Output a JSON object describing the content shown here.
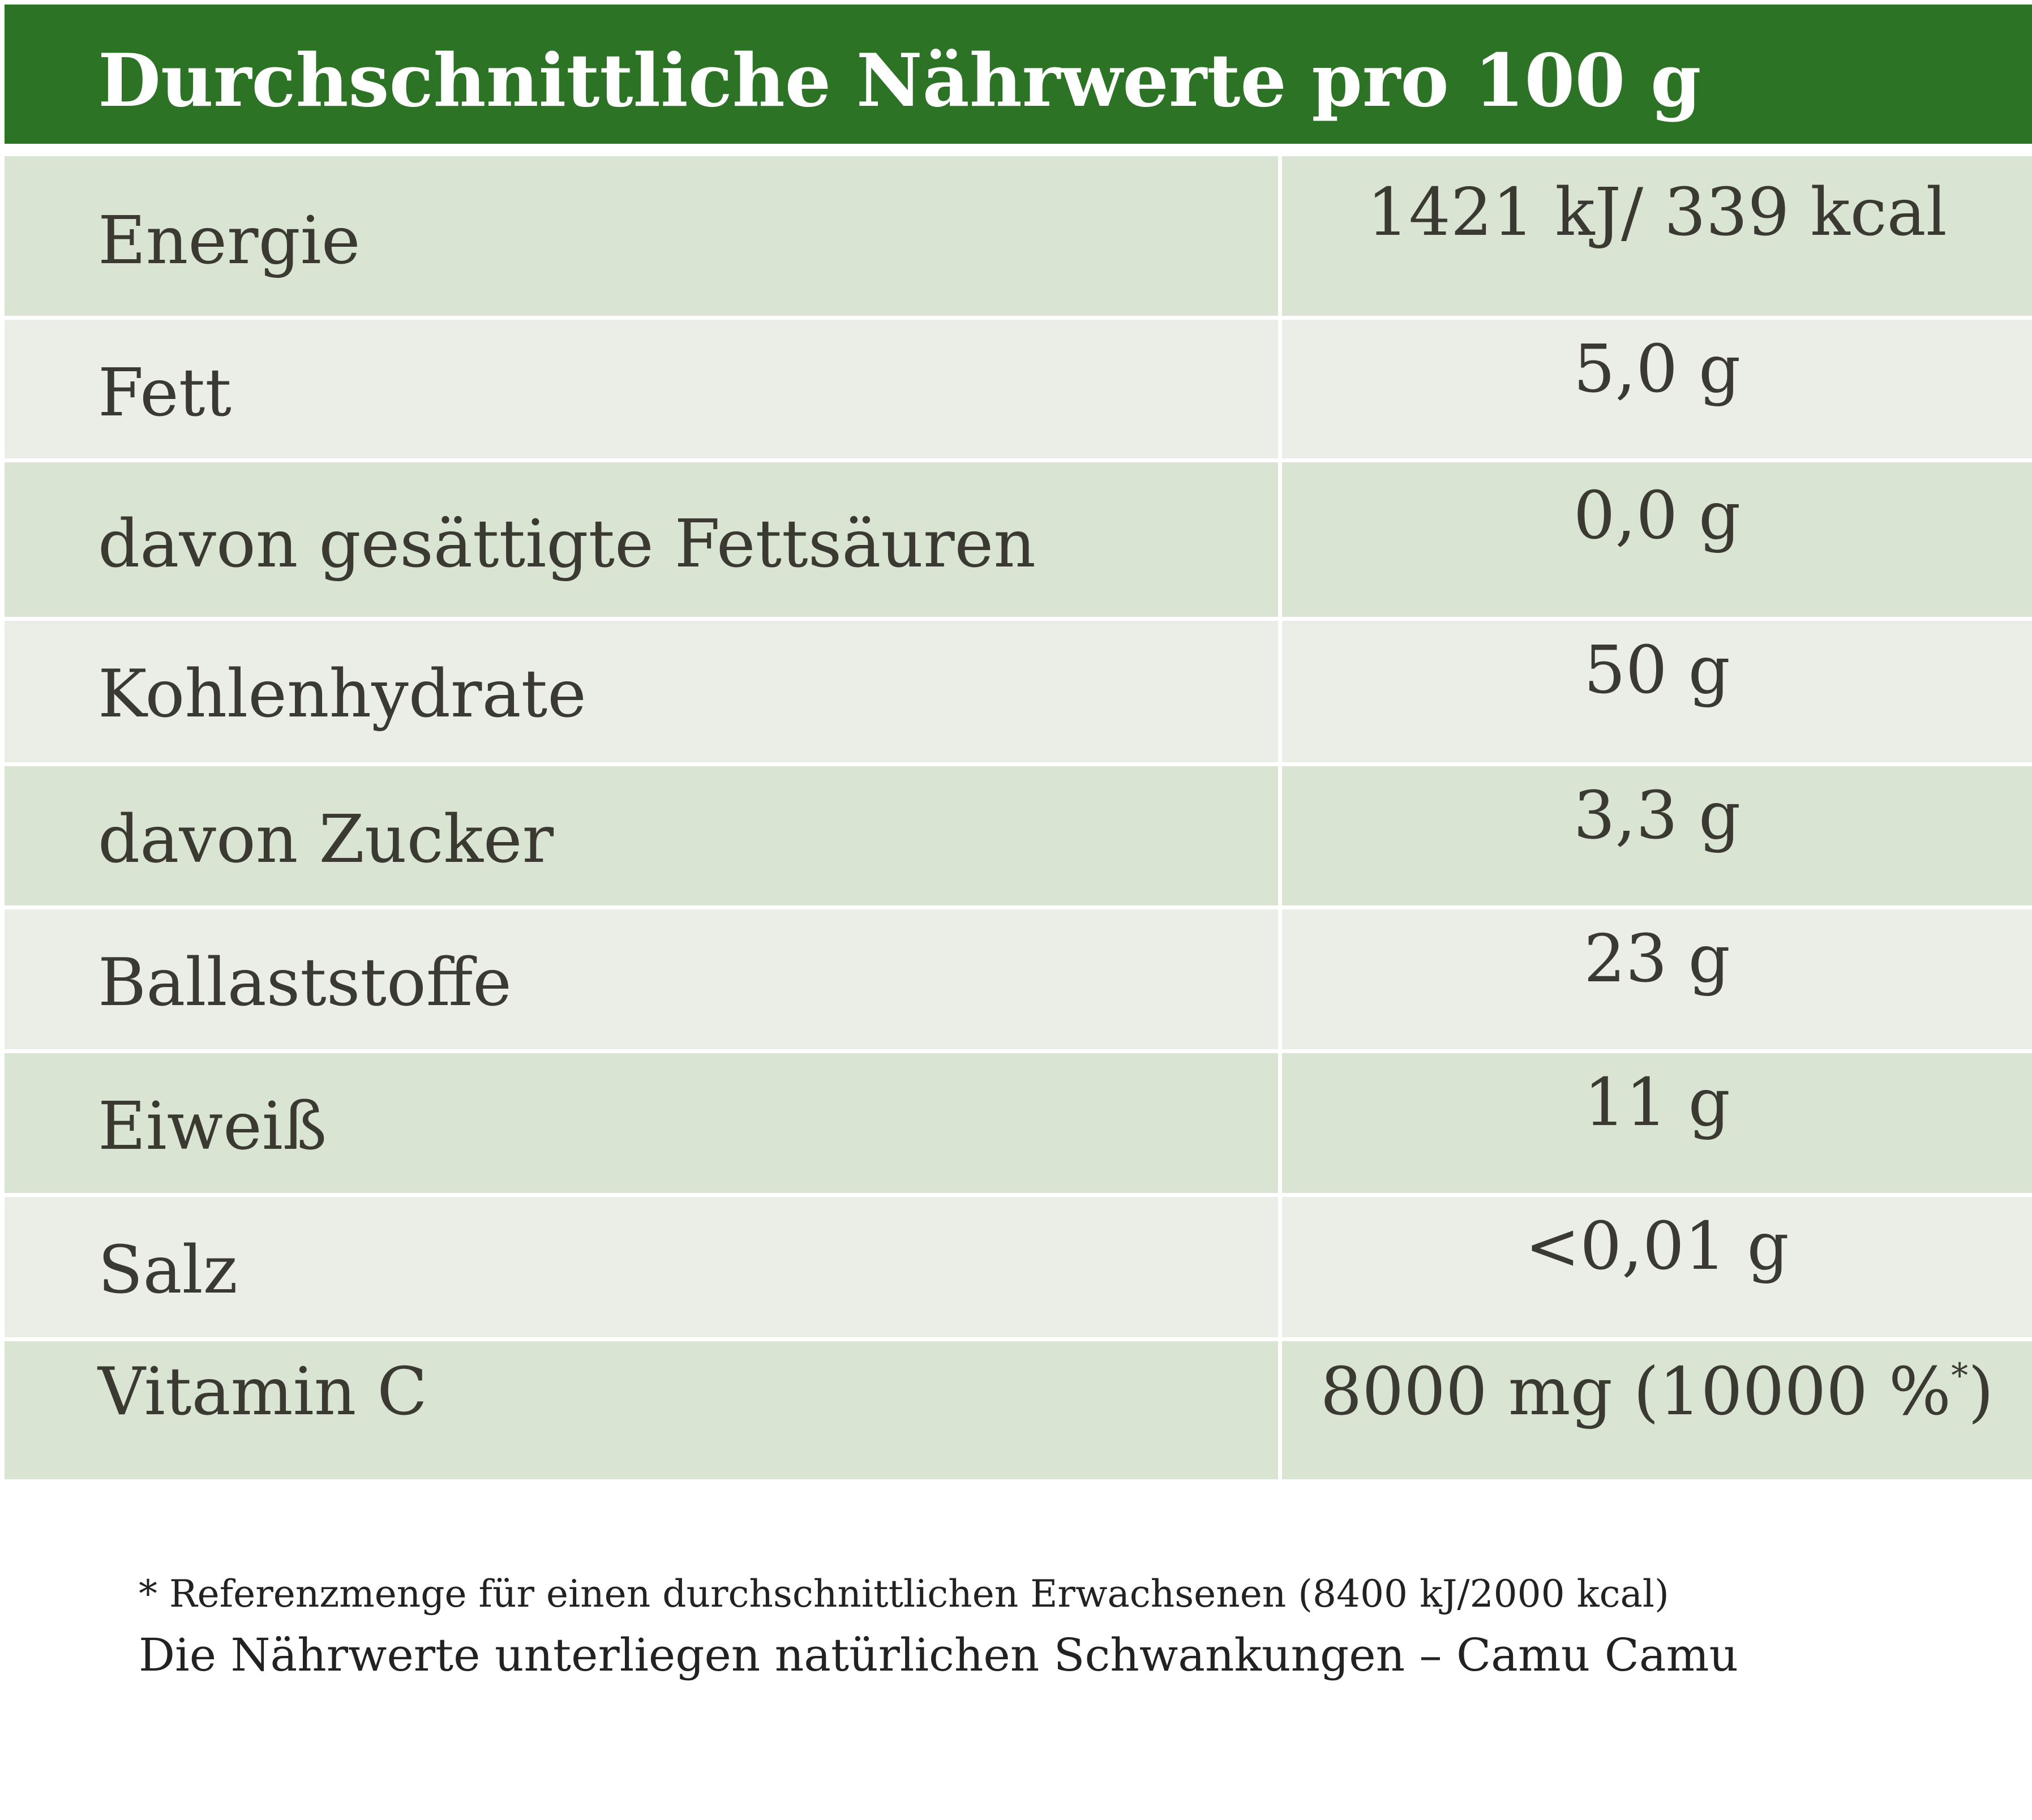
{
  "header": {
    "title": "Durchschnittliche Nährwerte pro 100 g"
  },
  "rows": [
    {
      "label": "Energie",
      "value": "1421 kJ/ 339 kcal"
    },
    {
      "label": "Fett",
      "value": "5,0 g"
    },
    {
      "label": "davon gesättigte Fettsäuren",
      "value": "0,0 g"
    },
    {
      "label": "Kohlenhydrate",
      "value": "50 g"
    },
    {
      "label": "davon Zucker",
      "value": "3,3 g"
    },
    {
      "label": "Ballaststoffe",
      "value": "23 g"
    },
    {
      "label": "Eiweiß",
      "value": "11 g"
    },
    {
      "label": "Salz",
      "value": "<0,01 g"
    },
    {
      "label": "Vitamin C",
      "value": "8000 mg (10000 %",
      "value_sup": "*",
      "value_suffix": ")"
    }
  ],
  "footer": {
    "reference_note": "* Referenzmenge für einen durchschnittlichen Erwachsenen (8400 kJ/2000 kcal)",
    "variation_note": "Die Nährwerte unterliegen natürlichen Schwankungen – Camu Camu"
  },
  "colors": {
    "header_bg": "#2d7326",
    "row_dark": "#d9e4d2",
    "row_light": "#eaeee7"
  }
}
